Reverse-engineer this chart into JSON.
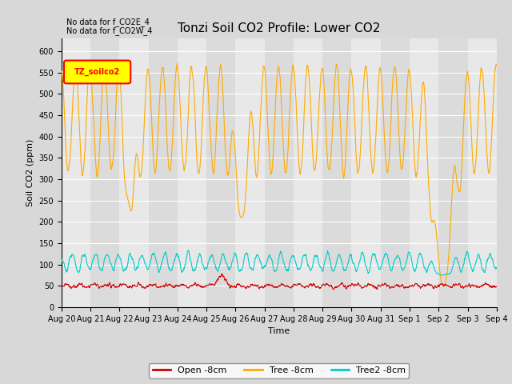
{
  "title": "Tonzi Soil CO2 Profile: Lower CO2",
  "xlabel": "Time",
  "ylabel": "Soil CO2 (ppm)",
  "ylim": [
    0,
    630
  ],
  "yticks": [
    0,
    50,
    100,
    150,
    200,
    250,
    300,
    350,
    400,
    450,
    500,
    550,
    600
  ],
  "annotations": [
    "No data for f_CO2E_4",
    "No data for f_CO2W_4"
  ],
  "legend_label": "TZ_soilco2",
  "legend_items": [
    "Open -8cm",
    "Tree -8cm",
    "Tree2 -8cm"
  ],
  "legend_colors": [
    "#cc0000",
    "#ffaa00",
    "#00cccc"
  ],
  "bg_color": "#e8e8e8",
  "grid_color": "#ffffff",
  "title_fontsize": 11,
  "axis_fontsize": 8,
  "tick_fontsize": 7,
  "n_days": 15,
  "xtick_labels": [
    "Aug 20",
    "Aug 21",
    "Aug 22",
    "Aug 23",
    "Aug 24",
    "Aug 25",
    "Aug 26",
    "Aug 27",
    "Aug 28",
    "Aug 29",
    "Aug 30",
    "Aug 31",
    "Sep 1",
    "Sep 2",
    "Sep 3",
    "Sep 4"
  ],
  "fig_facecolor": "#d8d8d8"
}
